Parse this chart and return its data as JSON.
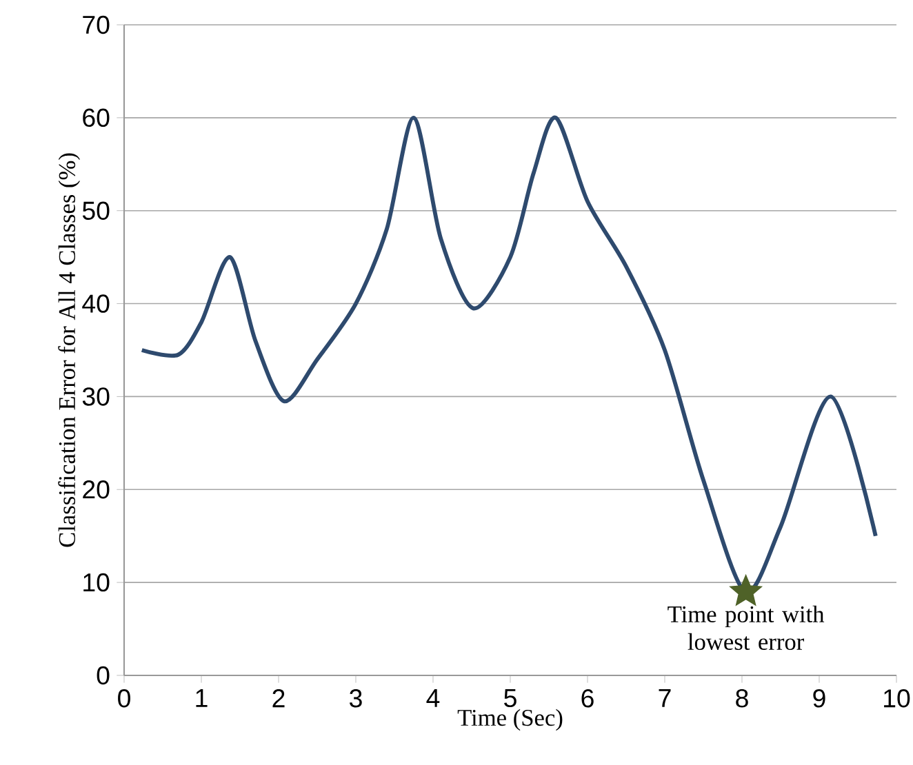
{
  "chart_data": {
    "type": "line",
    "xlabel": "Time (Sec)",
    "ylabel": "Classification Error for All 4 Classes (%)",
    "series": [
      {
        "color": "#2e4a6e",
        "marker": "none",
        "line_style": "solid",
        "x": [
          0.23,
          0.7,
          1.0,
          1.37,
          1.7,
          2.07,
          2.5,
          3.0,
          3.4,
          3.75,
          4.1,
          4.52,
          5.0,
          5.3,
          5.59,
          6.0,
          6.5,
          7.0,
          7.5,
          8.04,
          8.5,
          9.15,
          9.73
        ],
        "values": [
          35,
          34.5,
          38,
          45,
          36,
          29.5,
          34,
          40,
          48,
          60,
          47,
          39.5,
          45,
          54,
          60,
          51,
          44,
          35,
          21,
          9,
          16,
          30,
          15
        ]
      },
      {
        "type": "scatter",
        "color": "#4f6228",
        "marker": "star",
        "x": [
          8.05
        ],
        "values": [
          9
        ]
      }
    ],
    "xlim": [
      0,
      10
    ],
    "xticks": [
      0,
      1,
      2,
      3,
      4,
      5,
      6,
      7,
      8,
      9,
      10
    ],
    "ylim": [
      0,
      70
    ],
    "yticks": [
      0,
      10,
      20,
      30,
      40,
      50,
      60,
      70
    ],
    "grid": "y",
    "annotations": [
      {
        "text": "Time point with lowest error",
        "x": 8.05,
        "y": 9
      }
    ]
  }
}
